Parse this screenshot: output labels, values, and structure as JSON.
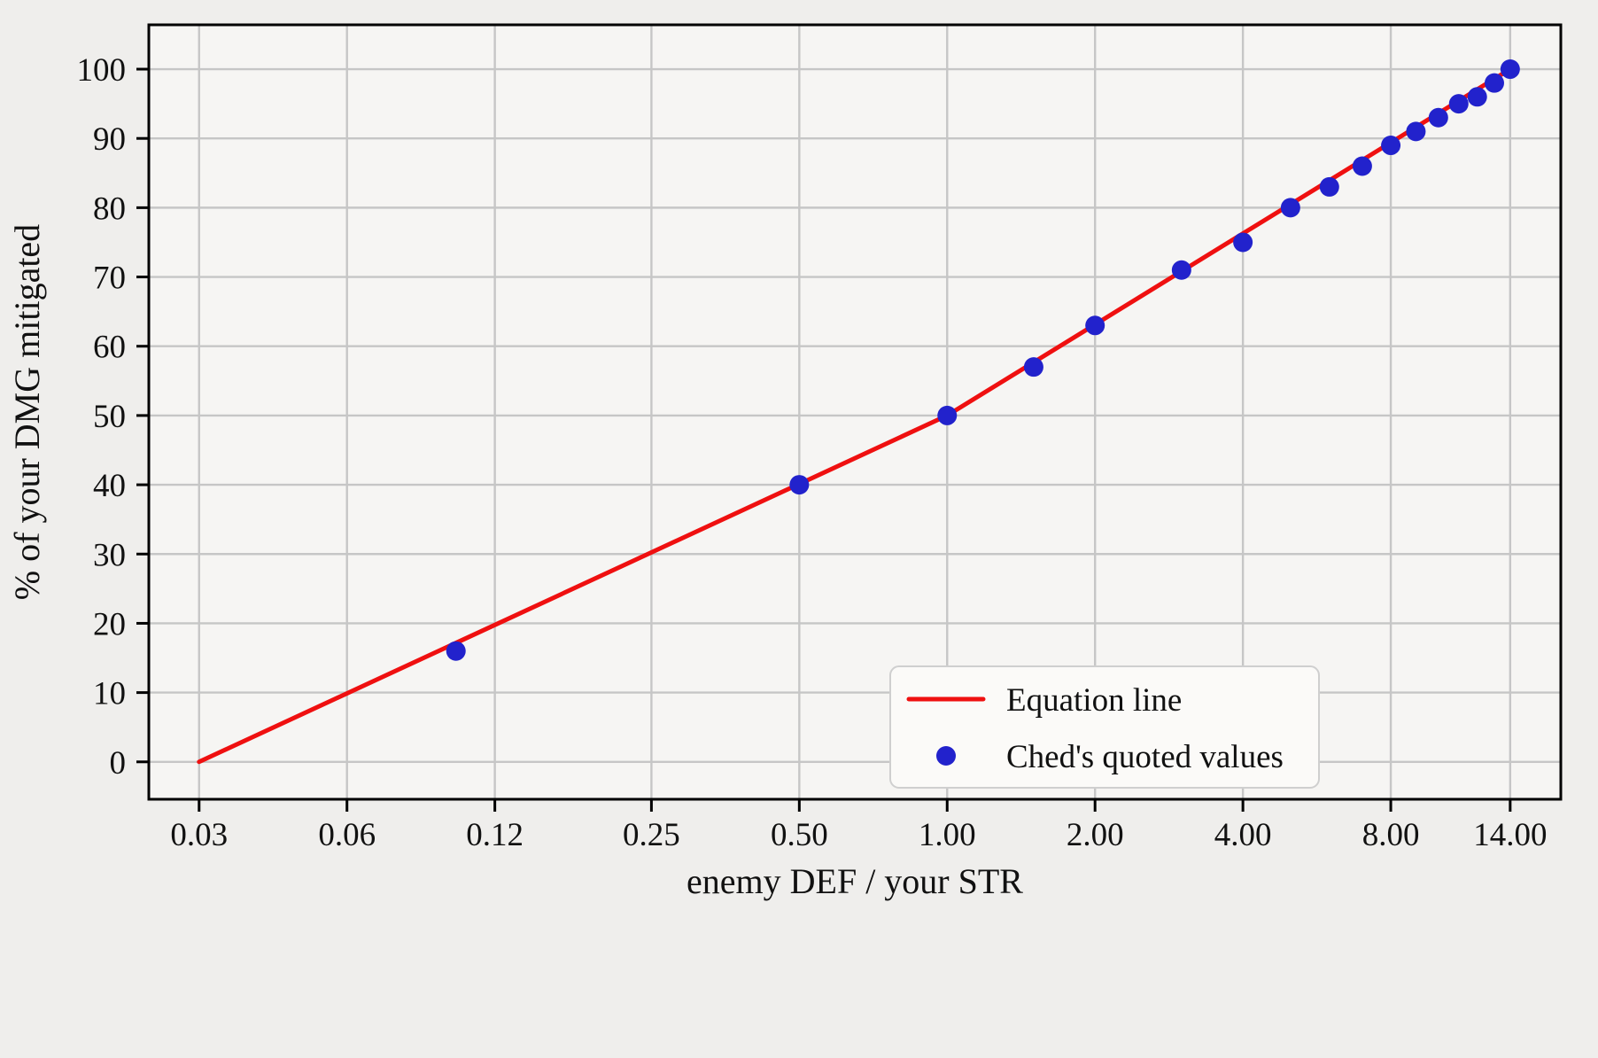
{
  "chart_data": {
    "type": "line",
    "title": "",
    "xlabel": "enemy DEF / your STR",
    "ylabel": "% of your DMG mitigated",
    "x_scale": "log",
    "x_range": [
      0.0237,
      17.75
    ],
    "y_range": [
      -5.4,
      106.4
    ],
    "grid": true,
    "x_ticks": {
      "values": [
        0.03,
        0.06,
        0.12,
        0.25,
        0.5,
        1,
        2,
        4,
        8,
        14
      ],
      "labels": [
        "0.03",
        "0.06",
        "0.12",
        "0.25",
        "0.50",
        "1.00",
        "2.00",
        "4.00",
        "8.00",
        "14.00"
      ]
    },
    "y_ticks": {
      "values": [
        0,
        10,
        20,
        30,
        40,
        50,
        60,
        70,
        80,
        90,
        100
      ],
      "labels": [
        "0",
        "10",
        "20",
        "30",
        "40",
        "50",
        "60",
        "70",
        "80",
        "90",
        "100"
      ]
    },
    "series": [
      {
        "name": "Equation line",
        "type": "line",
        "color": "#ef1010",
        "points": [
          [
            0.03,
            0
          ],
          [
            1,
            50
          ],
          [
            14,
            100
          ]
        ]
      },
      {
        "name": "Ched's quoted values",
        "type": "scatter",
        "color": "#2222cc",
        "points": [
          [
            0.1,
            16
          ],
          [
            0.5,
            40
          ],
          [
            1,
            50
          ],
          [
            1.5,
            57
          ],
          [
            2,
            63
          ],
          [
            3,
            71
          ],
          [
            4,
            75
          ],
          [
            5,
            80
          ],
          [
            6,
            83
          ],
          [
            7,
            86
          ],
          [
            8,
            89
          ],
          [
            9,
            91
          ],
          [
            10,
            93
          ],
          [
            11,
            95
          ],
          [
            12,
            96
          ],
          [
            13,
            98
          ],
          [
            14,
            100
          ]
        ]
      }
    ],
    "legend": {
      "position": "lower right",
      "entries": [
        {
          "label": "Equation line",
          "marker": "line",
          "color": "#ef1010"
        },
        {
          "label": "Ched's quoted values",
          "marker": "point",
          "color": "#2222cc"
        }
      ]
    },
    "colors": {
      "figure_bg": "#efeeec",
      "axes_bg": "#f6f5f3",
      "grid": "#c6c6c6",
      "spine": "#000000",
      "legend_bg": "#fbfaf8",
      "text": "#111111"
    }
  }
}
